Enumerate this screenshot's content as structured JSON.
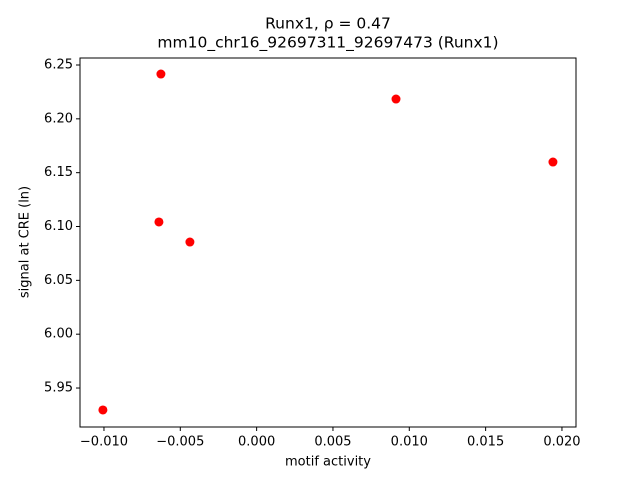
{
  "chart_data": {
    "type": "scatter",
    "title": "Runx1, ρ = 0.47",
    "subtitle": "mm10_chr16_92697311_92697473 (Runx1)",
    "x_label": "motif activity",
    "y_label": "signal at CRE (ln)",
    "color": "#ff0000",
    "x": [
      -0.00627,
      0.00913,
      0.01941,
      -0.0064,
      -0.00437,
      -0.01007
    ],
    "values": [
      6.2416,
      6.2184,
      6.1599,
      6.1042,
      6.0856,
      5.9296
    ],
    "xlim": [
      -0.01157,
      0.02092
    ],
    "ylim": [
      5.9138,
      6.2565
    ],
    "xticks": [
      {
        "value": -0.01,
        "label": "−0.010"
      },
      {
        "value": -0.005,
        "label": "−0.005"
      },
      {
        "value": 0,
        "label": "0.000"
      },
      {
        "value": 0.005,
        "label": "0.005"
      },
      {
        "value": 0.01,
        "label": "0.010"
      },
      {
        "value": 0.015,
        "label": "0.015"
      },
      {
        "value": 0.02,
        "label": "0.020"
      }
    ],
    "yticks": [
      5.95,
      {
        "value": 6,
        "label": "6.00"
      },
      6.05,
      {
        "value": 6.1,
        "label": "6.10"
      },
      6.15,
      {
        "value": 6.2,
        "label": "6.20"
      },
      6.25
    ]
  }
}
